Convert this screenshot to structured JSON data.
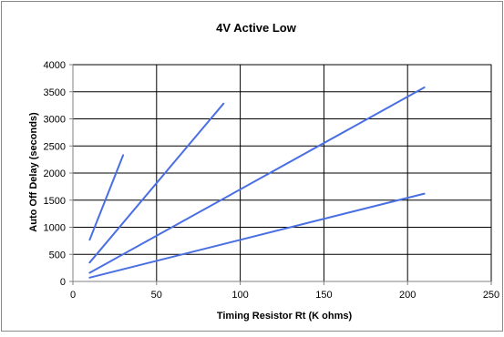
{
  "chart_data": {
    "type": "line",
    "title": "4V Active Low",
    "xlabel": "Timing Resistor  Rt  (K ohms)",
    "ylabel": "Auto Off Delay (seconds)",
    "xlim": [
      0,
      250
    ],
    "ylim": [
      0,
      4000
    ],
    "x_ticks": [
      0,
      50,
      100,
      150,
      200,
      250
    ],
    "y_ticks": [
      0,
      500,
      1000,
      1500,
      2000,
      2500,
      3000,
      3500,
      4000
    ],
    "grid": true,
    "legend": "none",
    "series": [
      {
        "x": [
          10,
          30
        ],
        "y": [
          770,
          2330
        ],
        "color": "#4a6fe3"
      },
      {
        "x": [
          10,
          90
        ],
        "y": [
          350,
          3280
        ],
        "color": "#4a6fe3"
      },
      {
        "x": [
          10,
          210
        ],
        "y": [
          160,
          3580
        ],
        "color": "#4a6fe3"
      },
      {
        "x": [
          10,
          210
        ],
        "y": [
          70,
          1620
        ],
        "color": "#4a6fe3"
      }
    ]
  }
}
